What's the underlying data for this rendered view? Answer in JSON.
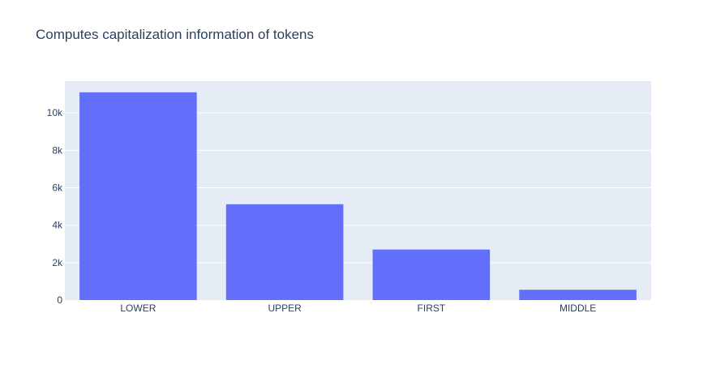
{
  "chart_data": {
    "type": "bar",
    "title": "Computes capitalization information of tokens",
    "categories": [
      "LOWER",
      "UPPER",
      "FIRST",
      "MIDDLE"
    ],
    "values": [
      11100,
      5120,
      2700,
      550
    ],
    "ylim": [
      0,
      11700
    ],
    "yticks": [
      0,
      2000,
      4000,
      6000,
      8000,
      10000
    ],
    "ytick_labels": [
      "0",
      "2k",
      "4k",
      "6k",
      "8k",
      "10k"
    ],
    "grid": true,
    "legend": "none",
    "colors": {
      "bar": "#636efa",
      "plot_bg": "#e5ecf6",
      "grid": "#ffffff",
      "text": "#2a3f5f",
      "tick_text": "#2a3f5f"
    }
  }
}
